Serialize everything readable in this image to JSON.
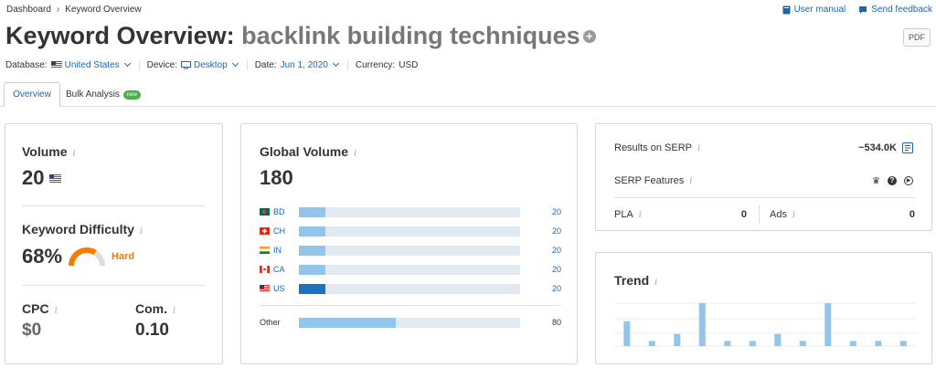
{
  "breadcrumb": {
    "home": "Dashboard",
    "current": "Keyword Overview"
  },
  "toplinks": {
    "manual": "User manual",
    "feedback": "Send feedback"
  },
  "title": {
    "prefix": "Keyword Overview:",
    "keyword": "backlink building techniques"
  },
  "pdf_label": "PDF",
  "meta": {
    "database_label": "Database:",
    "database_value": "United States",
    "device_label": "Device:",
    "device_value": "Desktop",
    "date_label": "Date:",
    "date_value": "Jun 1, 2020",
    "currency_label": "Currency:",
    "currency_value": "USD"
  },
  "tabs": {
    "overview": "Overview",
    "bulk": "Bulk Analysis",
    "bulk_badge": "new"
  },
  "volume": {
    "label": "Volume",
    "value": "20"
  },
  "kd": {
    "label": "Keyword Difficulty",
    "value": "68%",
    "level": "Hard",
    "percent": 68
  },
  "cpc": {
    "label": "CPC",
    "value": "$0"
  },
  "com": {
    "label": "Com.",
    "value": "0.10"
  },
  "global": {
    "label": "Global Volume",
    "value": "180",
    "rows": [
      {
        "code": "BD",
        "value": "20",
        "fill": 0.12
      },
      {
        "code": "CH",
        "value": "20",
        "fill": 0.12
      },
      {
        "code": "IN",
        "value": "20",
        "fill": 0.12
      },
      {
        "code": "CA",
        "value": "20",
        "fill": 0.12
      },
      {
        "code": "US",
        "value": "20",
        "fill": 0.12
      }
    ],
    "other_label": "Other",
    "other_value": "80",
    "other_fill": 0.44
  },
  "serp": {
    "results_label": "Results on SERP",
    "results_value": "~534.0K",
    "features_label": "SERP Features",
    "pla_label": "PLA",
    "pla_value": "0",
    "ads_label": "Ads",
    "ads_value": "0"
  },
  "trend": {
    "label": "Trend",
    "values": [
      0.58,
      0.12,
      0.28,
      1.0,
      0.12,
      0.12,
      0.28,
      0.12,
      1.0,
      0.12,
      0.12,
      0.12
    ]
  },
  "colors": {
    "accent": "#1a66b0",
    "hard": "#f57c00",
    "bar": "#93c5ea",
    "bar_us": "#1a73c0"
  }
}
